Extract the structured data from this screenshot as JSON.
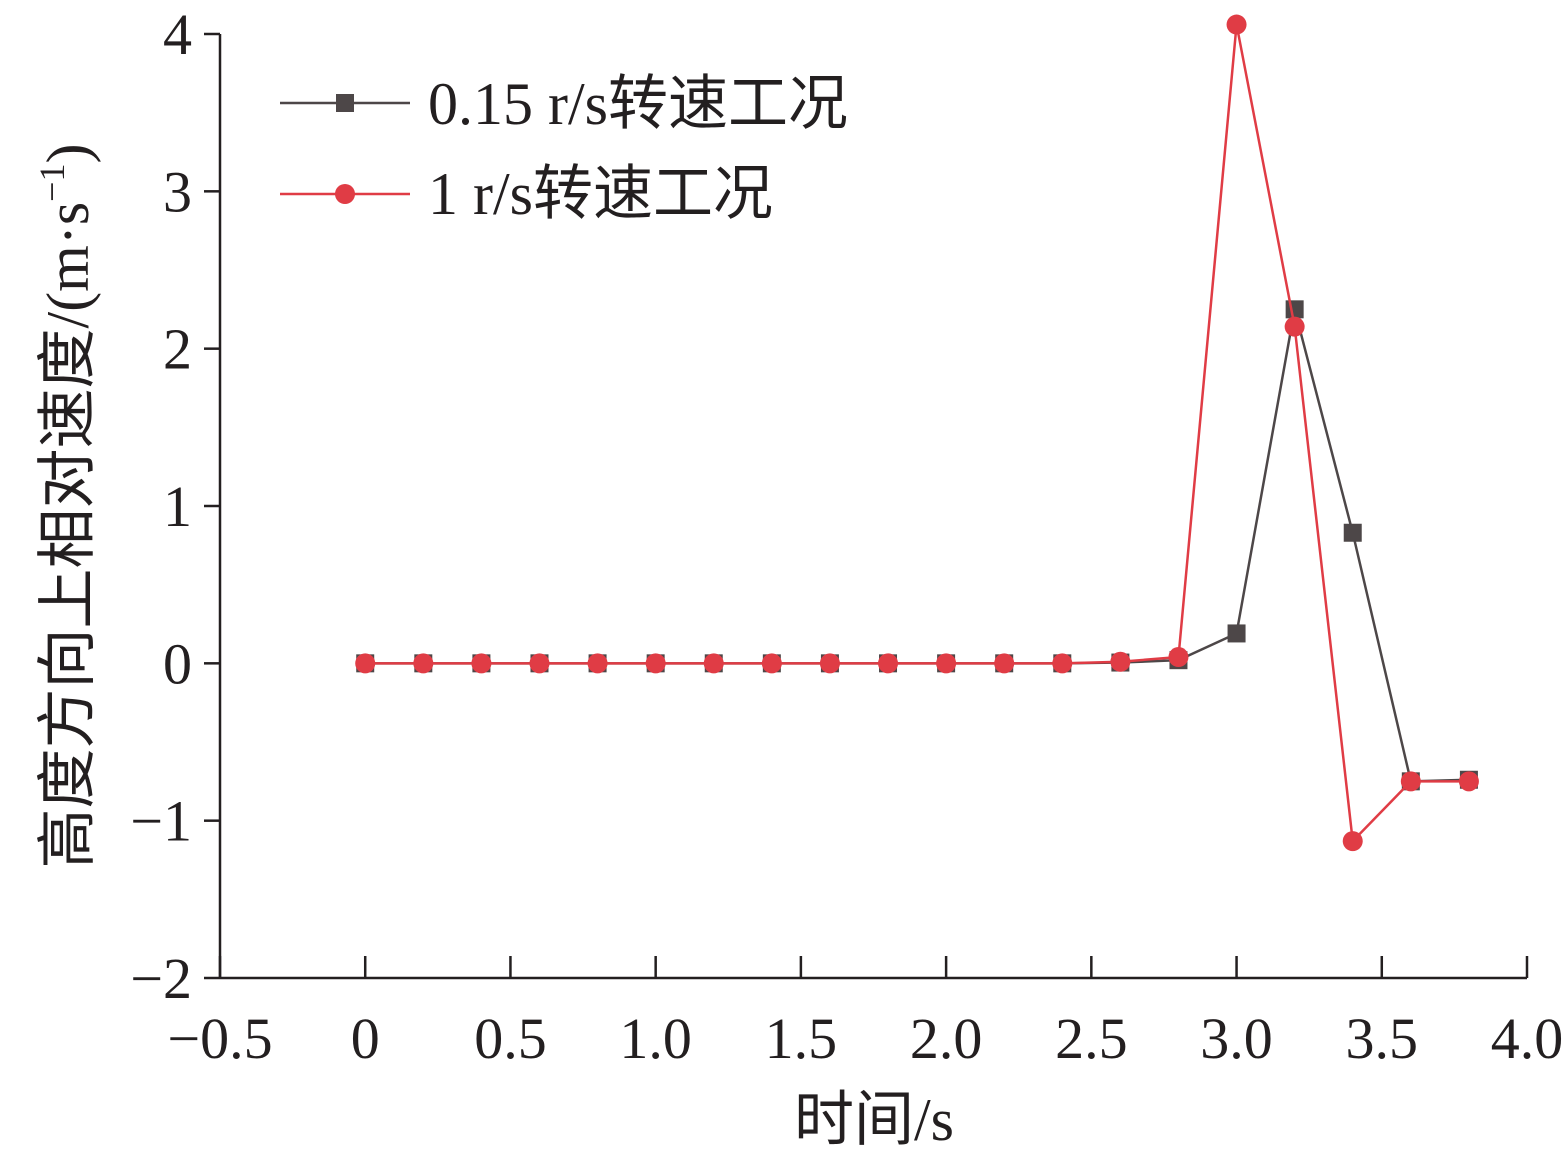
{
  "chart_data": {
    "type": "line",
    "xlabel": "时间/s",
    "ylabel": "高度方向上相对速度/(m·s",
    "ylabel_sup": "−1",
    "ylabel_close": ")",
    "xlim": [
      -0.5,
      4.0
    ],
    "ylim": [
      -2,
      4
    ],
    "x_ticks": [
      -0.5,
      0,
      0.5,
      1.0,
      1.5,
      2.0,
      2.5,
      3.0,
      3.5,
      4.0
    ],
    "x_tick_labels": [
      "−0.5",
      "0",
      "0.5",
      "1.0",
      "1.5",
      "2.0",
      "2.5",
      "3.0",
      "3.5",
      "4.0"
    ],
    "y_ticks": [
      -2,
      -1,
      0,
      1,
      2,
      3,
      4
    ],
    "y_tick_labels": [
      "−2",
      "−1",
      "0",
      "1",
      "2",
      "3",
      "4"
    ],
    "x": [
      0,
      0.2,
      0.4,
      0.6,
      0.8,
      1.0,
      1.2,
      1.4,
      1.6,
      1.8,
      2.0,
      2.2,
      2.4,
      2.6,
      2.8,
      3.0,
      3.2,
      3.4,
      3.6,
      3.8
    ],
    "series": [
      {
        "name": "0.15 r/s转速工况",
        "color": "#4d4748",
        "marker": "square",
        "values": [
          0,
          0,
          0,
          0,
          0,
          0,
          0,
          0,
          0,
          0,
          0,
          0,
          0,
          0.005,
          0.02,
          0.19,
          2.25,
          0.83,
          -0.75,
          -0.74
        ]
      },
      {
        "name": "1 r/s转速工况",
        "color": "#e03c45",
        "marker": "circle",
        "values": [
          0,
          0,
          0,
          0,
          0,
          0,
          0,
          0,
          0,
          0,
          0,
          0,
          0,
          0.01,
          0.04,
          4.06,
          2.14,
          -1.13,
          -0.75,
          -0.75
        ]
      }
    ],
    "legend_position": "top-left",
    "grid": false
  }
}
